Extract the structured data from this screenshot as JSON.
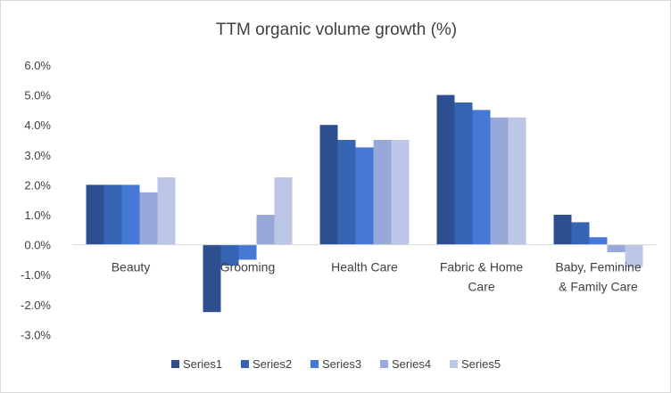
{
  "chart_data": {
    "type": "bar",
    "title": "TTM organic volume growth (%)",
    "categories": [
      [
        "Beauty"
      ],
      [
        "Grooming"
      ],
      [
        "Health Care"
      ],
      [
        "Fabric & Home",
        "Care"
      ],
      [
        "Baby, Feminine",
        "& Family Care"
      ]
    ],
    "series": [
      {
        "name": "Series1",
        "color": "#2e4f8f",
        "values": [
          2.0,
          -2.25,
          4.0,
          5.0,
          1.0
        ]
      },
      {
        "name": "Series2",
        "color": "#3564b3",
        "values": [
          2.0,
          -0.7,
          3.5,
          4.75,
          0.75
        ]
      },
      {
        "name": "Series3",
        "color": "#4679d6",
        "values": [
          2.0,
          -0.5,
          3.25,
          4.5,
          0.25
        ]
      },
      {
        "name": "Series4",
        "color": "#98a9d9",
        "values": [
          1.75,
          1.0,
          3.5,
          4.25,
          -0.25
        ]
      },
      {
        "name": "Series5",
        "color": "#bcc6e6",
        "values": [
          2.25,
          2.25,
          3.5,
          4.25,
          -0.75
        ]
      }
    ],
    "y_ticks": [
      "6.0%",
      "5.0%",
      "4.0%",
      "3.0%",
      "2.0%",
      "1.0%",
      "0.0%",
      "-1.0%",
      "-2.0%",
      "-3.0%"
    ],
    "ylim": [
      -3,
      6
    ],
    "grid": false,
    "legend_position": "bottom"
  }
}
